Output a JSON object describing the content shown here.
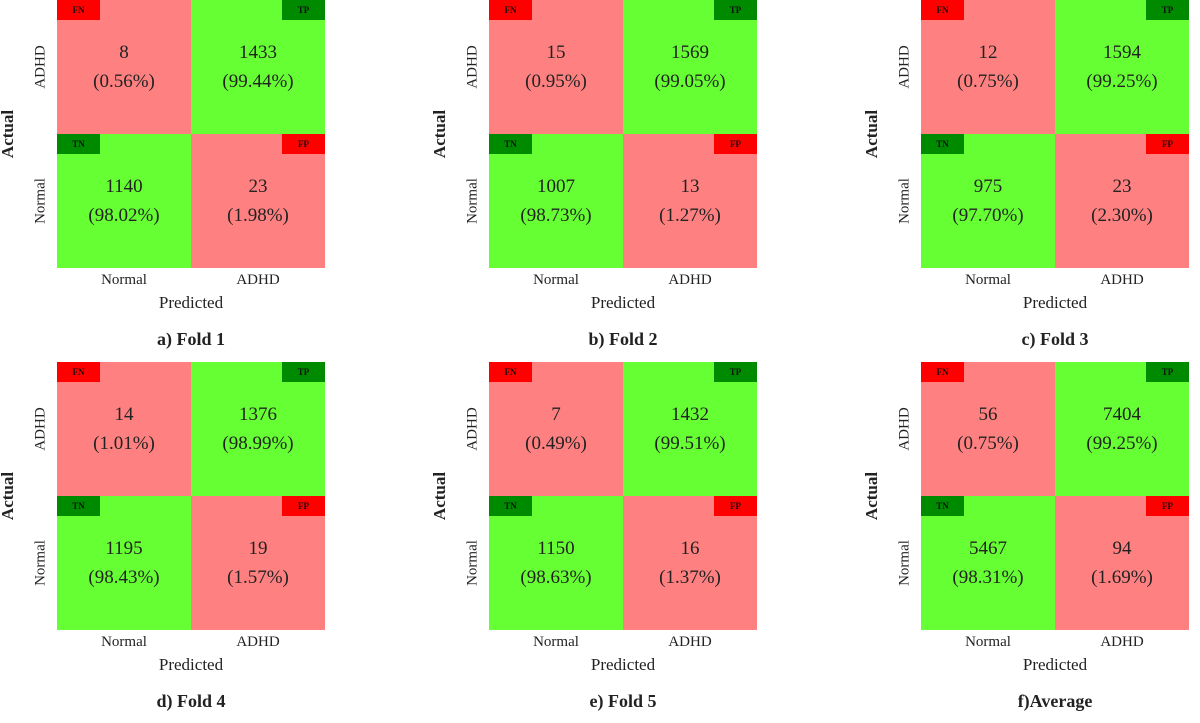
{
  "colors": {
    "correct": "#66ff33",
    "incorrect": "#ff8080",
    "tag_correct": "#008a00",
    "tag_incorrect": "#ff0000"
  },
  "chart_data": [
    {
      "type": "heatmap",
      "caption": "a) Fold 1",
      "xlabel": "Predicted",
      "ylabel": "Actual",
      "x_categories": [
        "Normal",
        "ADHD"
      ],
      "y_categories": [
        "ADHD",
        "Normal"
      ],
      "cells": [
        {
          "row": 0,
          "col": 0,
          "tag": "FN",
          "count": "8",
          "pct": "(0.56%)"
        },
        {
          "row": 0,
          "col": 1,
          "tag": "TP",
          "count": "1433",
          "pct": "(99.44%)"
        },
        {
          "row": 1,
          "col": 0,
          "tag": "TN",
          "count": "1140",
          "pct": "(98.02%)"
        },
        {
          "row": 1,
          "col": 1,
          "tag": "FP",
          "count": "23",
          "pct": "(1.98%)"
        }
      ]
    },
    {
      "type": "heatmap",
      "caption": "b) Fold 2",
      "xlabel": "Predicted",
      "ylabel": "Actual",
      "x_categories": [
        "Normal",
        "ADHD"
      ],
      "y_categories": [
        "ADHD",
        "Normal"
      ],
      "cells": [
        {
          "row": 0,
          "col": 0,
          "tag": "FN",
          "count": "15",
          "pct": "(0.95%)"
        },
        {
          "row": 0,
          "col": 1,
          "tag": "TP",
          "count": "1569",
          "pct": "(99.05%)"
        },
        {
          "row": 1,
          "col": 0,
          "tag": "TN",
          "count": "1007",
          "pct": "(98.73%)"
        },
        {
          "row": 1,
          "col": 1,
          "tag": "FP",
          "count": "13",
          "pct": "(1.27%)"
        }
      ]
    },
    {
      "type": "heatmap",
      "caption": "c) Fold 3",
      "xlabel": "Predicted",
      "ylabel": "Actual",
      "x_categories": [
        "Normal",
        "ADHD"
      ],
      "y_categories": [
        "ADHD",
        "Normal"
      ],
      "cells": [
        {
          "row": 0,
          "col": 0,
          "tag": "FN",
          "count": "12",
          "pct": "(0.75%)"
        },
        {
          "row": 0,
          "col": 1,
          "tag": "TP",
          "count": "1594",
          "pct": "(99.25%)"
        },
        {
          "row": 1,
          "col": 0,
          "tag": "TN",
          "count": "975",
          "pct": "(97.70%)"
        },
        {
          "row": 1,
          "col": 1,
          "tag": "FP",
          "count": "23",
          "pct": "(2.30%)"
        }
      ]
    },
    {
      "type": "heatmap",
      "caption": "d) Fold 4",
      "xlabel": "Predicted",
      "ylabel": "Actual",
      "x_categories": [
        "Normal",
        "ADHD"
      ],
      "y_categories": [
        "ADHD",
        "Normal"
      ],
      "cells": [
        {
          "row": 0,
          "col": 0,
          "tag": "FN",
          "count": "14",
          "pct": "(1.01%)"
        },
        {
          "row": 0,
          "col": 1,
          "tag": "TP",
          "count": "1376",
          "pct": "(98.99%)"
        },
        {
          "row": 1,
          "col": 0,
          "tag": "TN",
          "count": "1195",
          "pct": "(98.43%)"
        },
        {
          "row": 1,
          "col": 1,
          "tag": "FP",
          "count": "19",
          "pct": "(1.57%)"
        }
      ]
    },
    {
      "type": "heatmap",
      "caption": "e) Fold 5",
      "xlabel": "Predicted",
      "ylabel": "Actual",
      "x_categories": [
        "Normal",
        "ADHD"
      ],
      "y_categories": [
        "ADHD",
        "Normal"
      ],
      "cells": [
        {
          "row": 0,
          "col": 0,
          "tag": "FN",
          "count": "7",
          "pct": "(0.49%)"
        },
        {
          "row": 0,
          "col": 1,
          "tag": "TP",
          "count": "1432",
          "pct": "(99.51%)"
        },
        {
          "row": 1,
          "col": 0,
          "tag": "TN",
          "count": "1150",
          "pct": "(98.63%)"
        },
        {
          "row": 1,
          "col": 1,
          "tag": "FP",
          "count": "16",
          "pct": "(1.37%)"
        }
      ]
    },
    {
      "type": "heatmap",
      "caption": "f)Average",
      "xlabel": "Predicted",
      "ylabel": "Actual",
      "x_categories": [
        "Normal",
        "ADHD"
      ],
      "y_categories": [
        "ADHD",
        "Normal"
      ],
      "cells": [
        {
          "row": 0,
          "col": 0,
          "tag": "FN",
          "count": "56",
          "pct": "(0.75%)"
        },
        {
          "row": 0,
          "col": 1,
          "tag": "TP",
          "count": "7404",
          "pct": "(99.25%)"
        },
        {
          "row": 1,
          "col": 0,
          "tag": "TN",
          "count": "5467",
          "pct": "(98.31%)"
        },
        {
          "row": 1,
          "col": 1,
          "tag": "FP",
          "count": "94",
          "pct": "(1.69%)"
        }
      ]
    }
  ]
}
